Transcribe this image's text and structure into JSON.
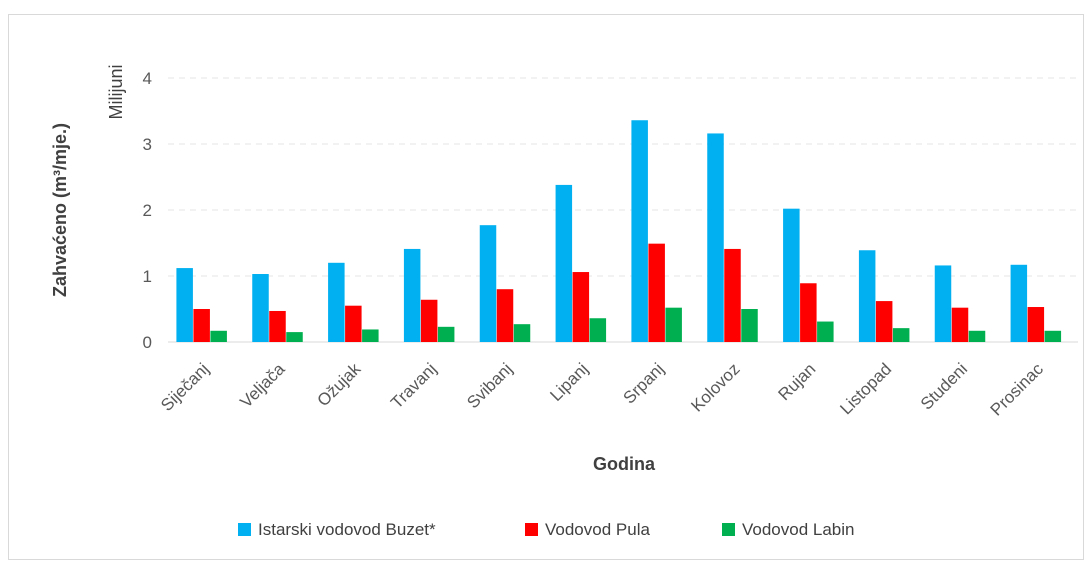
{
  "chart_data": {
    "type": "bar",
    "categories": [
      "Siječanj",
      "Veljača",
      "Ožujak",
      "Travanj",
      "Svibanj",
      "Lipanj",
      "Srpanj",
      "Kolovoz",
      "Rujan",
      "Listopad",
      "Studeni",
      "Prosinac"
    ],
    "series": [
      {
        "name": "Istarski vodovod Buzet*",
        "color": "#00b0f0",
        "values": [
          1.12,
          1.03,
          1.2,
          1.41,
          1.77,
          2.38,
          3.36,
          3.16,
          2.02,
          1.39,
          1.16,
          1.17
        ]
      },
      {
        "name": "Vodovod Pula",
        "color": "#ff0000",
        "values": [
          0.5,
          0.47,
          0.55,
          0.64,
          0.8,
          1.06,
          1.49,
          1.41,
          0.89,
          0.62,
          0.52,
          0.53
        ]
      },
      {
        "name": "Vodovod Labin",
        "color": "#00b050",
        "values": [
          0.17,
          0.15,
          0.19,
          0.23,
          0.27,
          0.36,
          0.52,
          0.5,
          0.31,
          0.21,
          0.17,
          0.17
        ]
      }
    ],
    "xlabel": "Godina",
    "ylabel": "Zahvaćeno (m³/mje.)",
    "yunit": "Milijuni",
    "ylim": [
      0,
      4
    ],
    "yticks": [
      0,
      1,
      2,
      3,
      4
    ],
    "grid": true,
    "legend": "bottom"
  }
}
